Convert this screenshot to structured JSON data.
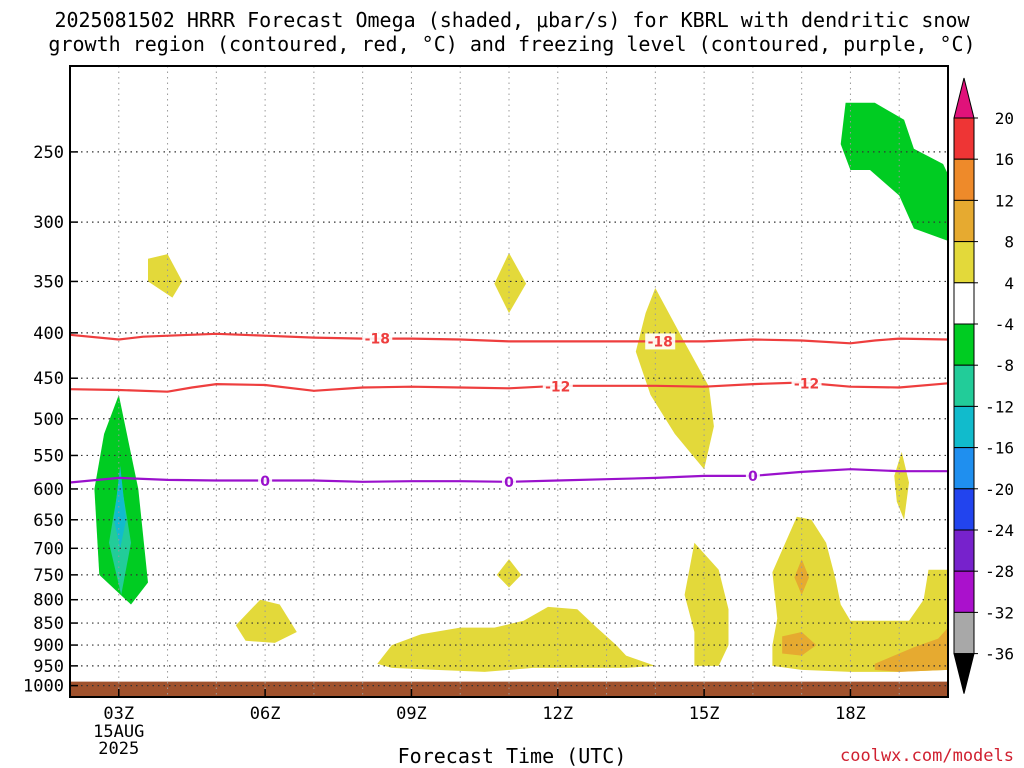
{
  "title": {
    "line1": "2025081502 HRRR Forecast Omega (shaded, μbar/s) for KBRL with dendritic snow",
    "line2": "growth region (contoured, red, °C) and freezing level (contoured, purple, °C)"
  },
  "credit": "coolwx.com/models",
  "chart_data": {
    "type": "heatmap",
    "title": "2025081502 HRRR Forecast Omega (shaded, μbar/s) for KBRL with dendritic snow growth region (contoured, red, °C) and freezing level (contoured, purple, °C)",
    "xlabel": "Forecast Time (UTC)",
    "ylabel": "",
    "x_range_hours": [
      2,
      20
    ],
    "x_ticks": [
      {
        "hour": 3,
        "label": "03Z",
        "sub": [
          "15AUG",
          "2025"
        ]
      },
      {
        "hour": 6,
        "label": "06Z"
      },
      {
        "hour": 9,
        "label": "09Z"
      },
      {
        "hour": 12,
        "label": "12Z"
      },
      {
        "hour": 15,
        "label": "15Z"
      },
      {
        "hour": 18,
        "label": "18Z"
      }
    ],
    "y_axis": {
      "scale": "log",
      "inverted": true,
      "range_hPa": [
        200,
        1030
      ],
      "ticks": [
        250,
        300,
        350,
        400,
        450,
        500,
        550,
        600,
        650,
        700,
        750,
        800,
        850,
        900,
        950,
        1000
      ]
    },
    "grid": true,
    "colorbar": {
      "labels": [
        "20",
        "16",
        "12",
        "8",
        "4",
        "-4",
        "-8",
        "-12",
        "-16",
        "-20",
        "-24",
        "-28",
        "-32",
        "-36"
      ],
      "colors": [
        "#ee3535",
        "#ee8a2a",
        "#e6aa30",
        "#e3d93a",
        "#ffffff",
        "#00cc22",
        "#22cc99",
        "#11bbcc",
        "#1f8fef",
        "#2244ee",
        "#7722cc",
        "#aa11cc",
        "#a8a8a8"
      ],
      "top_arrow_color": "#e0127a",
      "bottom_arrow_color": "#000000"
    },
    "contours": [
      {
        "name": "-18",
        "color": "#ee3e3e",
        "points": [
          [
            2,
            402
          ],
          [
            3,
            407
          ],
          [
            3.5,
            404
          ],
          [
            5,
            401
          ],
          [
            6,
            403
          ],
          [
            7,
            405
          ],
          [
            8,
            406
          ],
          [
            9,
            406
          ],
          [
            10,
            407
          ],
          [
            11,
            409
          ],
          [
            13,
            409
          ],
          [
            14,
            409
          ],
          [
            15,
            409
          ],
          [
            16,
            407
          ],
          [
            17,
            408
          ],
          [
            18,
            411
          ],
          [
            18.5,
            408
          ],
          [
            19,
            406
          ],
          [
            20,
            407
          ]
        ],
        "labels": [
          [
            8.3,
            406
          ],
          [
            14.1,
            409
          ]
        ]
      },
      {
        "name": "-12",
        "color": "#ee3e3e",
        "points": [
          [
            2,
            463
          ],
          [
            3,
            464
          ],
          [
            4,
            466
          ],
          [
            4.5,
            461
          ],
          [
            5,
            457
          ],
          [
            6,
            458
          ],
          [
            7,
            465
          ],
          [
            8,
            461
          ],
          [
            9,
            460
          ],
          [
            10,
            461
          ],
          [
            11,
            462
          ],
          [
            12,
            459
          ],
          [
            13,
            459
          ],
          [
            14,
            459
          ],
          [
            15,
            460
          ],
          [
            16,
            457
          ],
          [
            17,
            455
          ],
          [
            18,
            460
          ],
          [
            19,
            461
          ],
          [
            20,
            456
          ]
        ],
        "labels": [
          [
            12,
            460
          ],
          [
            17.1,
            456
          ]
        ]
      },
      {
        "name": "0",
        "color": "#9a11cc",
        "points": [
          [
            2,
            590
          ],
          [
            3,
            583
          ],
          [
            4,
            586
          ],
          [
            5,
            587
          ],
          [
            6,
            587
          ],
          [
            7,
            587
          ],
          [
            8,
            589
          ],
          [
            9,
            588
          ],
          [
            10,
            588
          ],
          [
            11,
            589
          ],
          [
            12,
            587
          ],
          [
            13,
            585
          ],
          [
            14,
            583
          ],
          [
            15,
            580
          ],
          [
            16,
            580
          ],
          [
            17,
            574
          ],
          [
            18,
            570
          ],
          [
            19,
            573
          ],
          [
            20,
            573
          ]
        ],
        "labels": [
          [
            6,
            588
          ],
          [
            11,
            589
          ],
          [
            16,
            580
          ]
        ]
      }
    ],
    "shaded_regions": [
      {
        "value_bin": "-8 to -4",
        "color": "#00cc22",
        "points": [
          [
            3,
            470
          ],
          [
            3.4,
            600
          ],
          [
            3.6,
            765
          ],
          [
            3.25,
            810
          ],
          [
            2.6,
            750
          ],
          [
            2.5,
            600
          ],
          [
            2.7,
            520
          ]
        ]
      },
      {
        "value_bin": "-12 to -8",
        "color": "#22cc99",
        "points": [
          [
            3.03,
            580
          ],
          [
            3.25,
            690
          ],
          [
            3.05,
            790
          ],
          [
            2.8,
            690
          ]
        ]
      },
      {
        "value_bin": "-16 to -12",
        "color": "#11bbcc",
        "points": [
          [
            3.03,
            565
          ],
          [
            3.15,
            650
          ],
          [
            3.03,
            700
          ],
          [
            2.9,
            650
          ]
        ]
      },
      {
        "value_bin": "-8 to -4",
        "color": "#00cc22",
        "points": [
          [
            17.9,
            220
          ],
          [
            18.5,
            220
          ],
          [
            19.1,
            230
          ],
          [
            19.3,
            248
          ],
          [
            19.9,
            258
          ],
          [
            20,
            265
          ],
          [
            20,
            315
          ],
          [
            19.3,
            305
          ],
          [
            19,
            280
          ],
          [
            18.4,
            262
          ],
          [
            18,
            262
          ],
          [
            17.8,
            245
          ]
        ]
      },
      {
        "value_bin": "4 to 8",
        "color": "#e3d93a",
        "points": [
          [
            3.6,
            330
          ],
          [
            4.0,
            326
          ],
          [
            4.3,
            350
          ],
          [
            4.1,
            365
          ],
          [
            3.6,
            350
          ]
        ]
      },
      {
        "value_bin": "4 to 8",
        "color": "#e3d93a",
        "points": [
          [
            11.0,
            325
          ],
          [
            11.35,
            352
          ],
          [
            11.0,
            380
          ],
          [
            10.7,
            352
          ]
        ]
      },
      {
        "value_bin": "4 to 8",
        "color": "#e3d93a",
        "points": [
          [
            14.0,
            356
          ],
          [
            14.6,
            410
          ],
          [
            15.1,
            460
          ],
          [
            15.2,
            510
          ],
          [
            15.0,
            570
          ],
          [
            14.4,
            520
          ],
          [
            13.9,
            470
          ],
          [
            13.6,
            420
          ],
          [
            13.8,
            380
          ]
        ]
      },
      {
        "value_bin": "4 to 8",
        "color": "#e3d93a",
        "points": [
          [
            11.0,
            720
          ],
          [
            11.25,
            750
          ],
          [
            11.0,
            775
          ],
          [
            10.75,
            750
          ]
        ]
      },
      {
        "value_bin": "4 to 8",
        "color": "#e3d93a",
        "points": [
          [
            5.9,
            800
          ],
          [
            6.3,
            810
          ],
          [
            6.65,
            870
          ],
          [
            6.2,
            895
          ],
          [
            5.6,
            890
          ],
          [
            5.4,
            855
          ]
        ]
      },
      {
        "value_bin": "4 to 8",
        "color": "#e3d93a",
        "points": [
          [
            8.3,
            945
          ],
          [
            8.6,
            900
          ],
          [
            9.2,
            875
          ],
          [
            10,
            860
          ],
          [
            10.7,
            860
          ],
          [
            11.3,
            845
          ],
          [
            11.8,
            815
          ],
          [
            12.4,
            820
          ],
          [
            12.8,
            860
          ],
          [
            13.2,
            900
          ],
          [
            13.4,
            925
          ],
          [
            14.0,
            950
          ],
          [
            13.4,
            955
          ],
          [
            12.5,
            955
          ],
          [
            11.5,
            955
          ],
          [
            10.5,
            965
          ],
          [
            9.5,
            960
          ],
          [
            8.6,
            955
          ]
        ]
      },
      {
        "value_bin": "4 to 8",
        "color": "#e3d93a",
        "points": [
          [
            14.8,
            690
          ],
          [
            15.3,
            740
          ],
          [
            15.5,
            820
          ],
          [
            15.5,
            900
          ],
          [
            15.3,
            950
          ],
          [
            14.8,
            950
          ],
          [
            14.8,
            870
          ],
          [
            14.6,
            790
          ]
        ]
      },
      {
        "value_bin": "4 to 8",
        "color": "#e3d93a",
        "points": [
          [
            16.4,
            745
          ],
          [
            16.9,
            645
          ],
          [
            17.2,
            650
          ],
          [
            17.5,
            690
          ],
          [
            17.7,
            760
          ],
          [
            17.8,
            810
          ],
          [
            18.0,
            845
          ],
          [
            18.5,
            845
          ],
          [
            19.2,
            845
          ],
          [
            19.5,
            800
          ],
          [
            19.6,
            740
          ],
          [
            20,
            740
          ],
          [
            20,
            960
          ],
          [
            19,
            965
          ],
          [
            18,
            965
          ],
          [
            17,
            960
          ],
          [
            16.4,
            950
          ],
          [
            16.4,
            900
          ],
          [
            16.5,
            840
          ]
        ]
      },
      {
        "value_bin": "8 to 12",
        "color": "#e6aa30",
        "points": [
          [
            17.0,
            720
          ],
          [
            17.15,
            755
          ],
          [
            17.0,
            790
          ],
          [
            16.85,
            755
          ]
        ]
      },
      {
        "value_bin": "8 to 12",
        "color": "#e6aa30",
        "points": [
          [
            16.6,
            880
          ],
          [
            17.0,
            870
          ],
          [
            17.3,
            900
          ],
          [
            17.0,
            925
          ],
          [
            16.6,
            920
          ]
        ]
      },
      {
        "value_bin": "8 to 12",
        "color": "#e6aa30",
        "points": [
          [
            18.5,
            945
          ],
          [
            19.3,
            905
          ],
          [
            19.8,
            885
          ],
          [
            20,
            860
          ],
          [
            20,
            960
          ],
          [
            19,
            965
          ],
          [
            18.5,
            960
          ]
        ]
      },
      {
        "value_bin": "4 to 8",
        "color": "#e3d93a",
        "points": [
          [
            19.05,
            545
          ],
          [
            19.2,
            590
          ],
          [
            19.1,
            650
          ],
          [
            18.95,
            620
          ],
          [
            18.9,
            580
          ]
        ]
      }
    ],
    "surface": {
      "color": "#a0522d",
      "top_hPa": 1000
    }
  }
}
